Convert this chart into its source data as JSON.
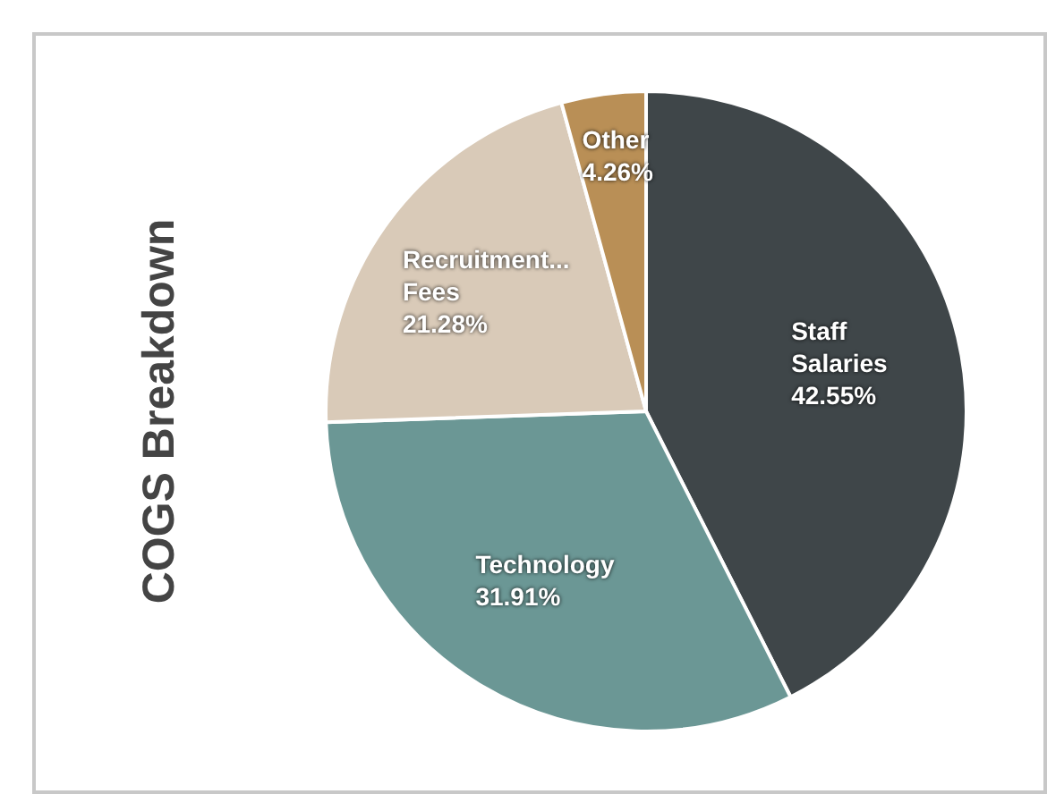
{
  "chart_data": {
    "type": "pie",
    "title": "COGS Breakdown",
    "categories": [
      "Staff Salaries",
      "Technology",
      "Recruitment... Fees",
      "Other"
    ],
    "values": [
      42.55,
      31.91,
      21.28,
      4.26
    ],
    "colors": [
      "#3f4649",
      "#6b9795",
      "#d9cab8",
      "#b98f56"
    ],
    "value_labels": [
      "42.55%",
      "31.91%",
      "21.28%",
      "4.26%"
    ],
    "legend": false
  }
}
